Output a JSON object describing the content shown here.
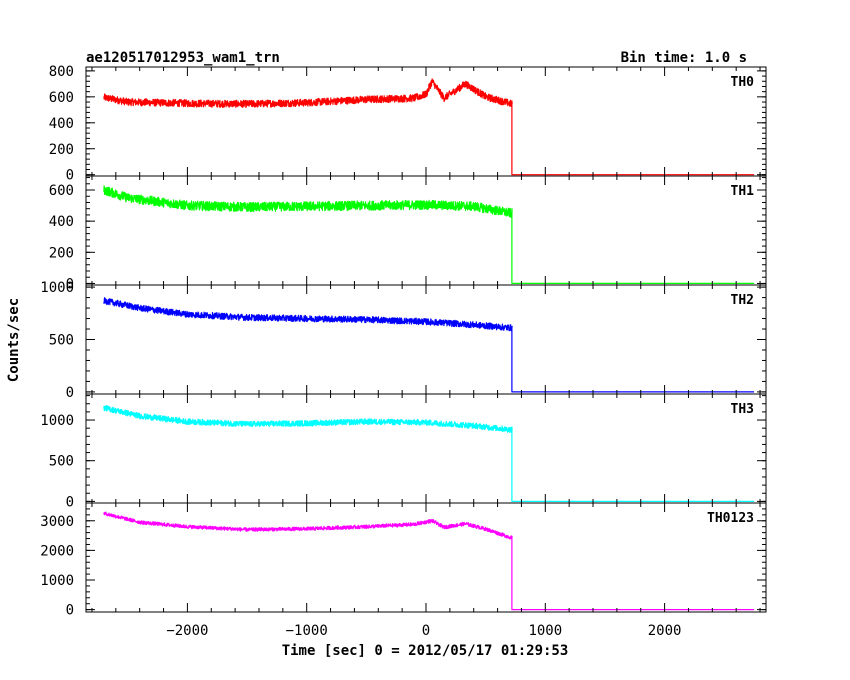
{
  "header": {
    "title": "ae120517012953_wam1_trn",
    "bin_time": "Bin time: 1.0 s"
  },
  "chart_data": {
    "type": "line",
    "xlabel": "Time [sec] 0 = 2012/05/17 01:29:53",
    "ylabel": "Counts/sec",
    "xlim": [
      -2850,
      2850
    ],
    "x_ticks": [
      -2000,
      -1000,
      0,
      1000,
      2000
    ],
    "x_tick_labels": [
      "−2000",
      "−1000",
      "0",
      "1000",
      "2000"
    ],
    "panels": [
      {
        "name": "TH0",
        "color": "#ff0000",
        "ylim": [
          -10,
          830
        ],
        "y_ticks": [
          0,
          200,
          400,
          600,
          800
        ],
        "y_tick_labels": [
          "0",
          "200",
          "400",
          "600",
          "800"
        ],
        "data_start": -2700,
        "data_end": 720,
        "step_x": 720,
        "tail_end": 2750,
        "noise": 28,
        "profile": [
          [
            -2700,
            595
          ],
          [
            -2500,
            560
          ],
          [
            -2000,
            550
          ],
          [
            -1500,
            545
          ],
          [
            -1000,
            555
          ],
          [
            -500,
            580
          ],
          [
            -100,
            590
          ],
          [
            0,
            620
          ],
          [
            50,
            720
          ],
          [
            150,
            590
          ],
          [
            330,
            700
          ],
          [
            500,
            600
          ],
          [
            720,
            545
          ]
        ]
      },
      {
        "name": "TH1",
        "color": "#00ff00",
        "ylim": [
          -10,
          690
        ],
        "y_ticks": [
          0,
          200,
          400,
          600
        ],
        "y_tick_labels": [
          "0",
          "200",
          "400",
          "600"
        ],
        "data_start": -2700,
        "data_end": 720,
        "step_x": 720,
        "tail_end": 2750,
        "noise": 30,
        "profile": [
          [
            -2700,
            600
          ],
          [
            -2500,
            550
          ],
          [
            -2000,
            500
          ],
          [
            -1500,
            490
          ],
          [
            -1000,
            495
          ],
          [
            -500,
            500
          ],
          [
            0,
            505
          ],
          [
            400,
            495
          ],
          [
            720,
            450
          ]
        ]
      },
      {
        "name": "TH2",
        "color": "#0000ff",
        "ylim": [
          -20,
          1020
        ],
        "y_ticks": [
          0,
          500,
          1000
        ],
        "y_tick_labels": [
          "0",
          "500",
          "1000"
        ],
        "data_start": -2700,
        "data_end": 720,
        "step_x": 720,
        "tail_end": 2750,
        "noise": 30,
        "profile": [
          [
            -2700,
            870
          ],
          [
            -2400,
            800
          ],
          [
            -2000,
            740
          ],
          [
            -1500,
            710
          ],
          [
            -1000,
            700
          ],
          [
            -500,
            690
          ],
          [
            0,
            670
          ],
          [
            400,
            640
          ],
          [
            720,
            610
          ]
        ]
      },
      {
        "name": "TH3",
        "color": "#00ffff",
        "ylim": [
          -20,
          1320
        ],
        "y_ticks": [
          0,
          500,
          1000
        ],
        "y_tick_labels": [
          "0",
          "500",
          "1000"
        ],
        "data_start": -2700,
        "data_end": 720,
        "step_x": 720,
        "tail_end": 2750,
        "noise": 35,
        "profile": [
          [
            -2700,
            1150
          ],
          [
            -2400,
            1050
          ],
          [
            -2000,
            980
          ],
          [
            -1500,
            950
          ],
          [
            -1000,
            960
          ],
          [
            -500,
            980
          ],
          [
            0,
            970
          ],
          [
            400,
            930
          ],
          [
            720,
            880
          ]
        ]
      },
      {
        "name": "TH0123",
        "color": "#ff00ff",
        "ylim": [
          -80,
          3600
        ],
        "y_ticks": [
          0,
          1000,
          2000,
          3000
        ],
        "y_tick_labels": [
          "0",
          "1000",
          "2000",
          "3000"
        ],
        "data_start": -2700,
        "data_end": 720,
        "step_x": 720,
        "tail_end": 2750,
        "noise": 60,
        "profile": [
          [
            -2700,
            3250
          ],
          [
            -2400,
            2950
          ],
          [
            -2000,
            2800
          ],
          [
            -1500,
            2700
          ],
          [
            -1000,
            2730
          ],
          [
            -500,
            2800
          ],
          [
            -100,
            2880
          ],
          [
            50,
            3000
          ],
          [
            150,
            2780
          ],
          [
            330,
            2900
          ],
          [
            500,
            2720
          ],
          [
            720,
            2420
          ]
        ]
      }
    ]
  }
}
